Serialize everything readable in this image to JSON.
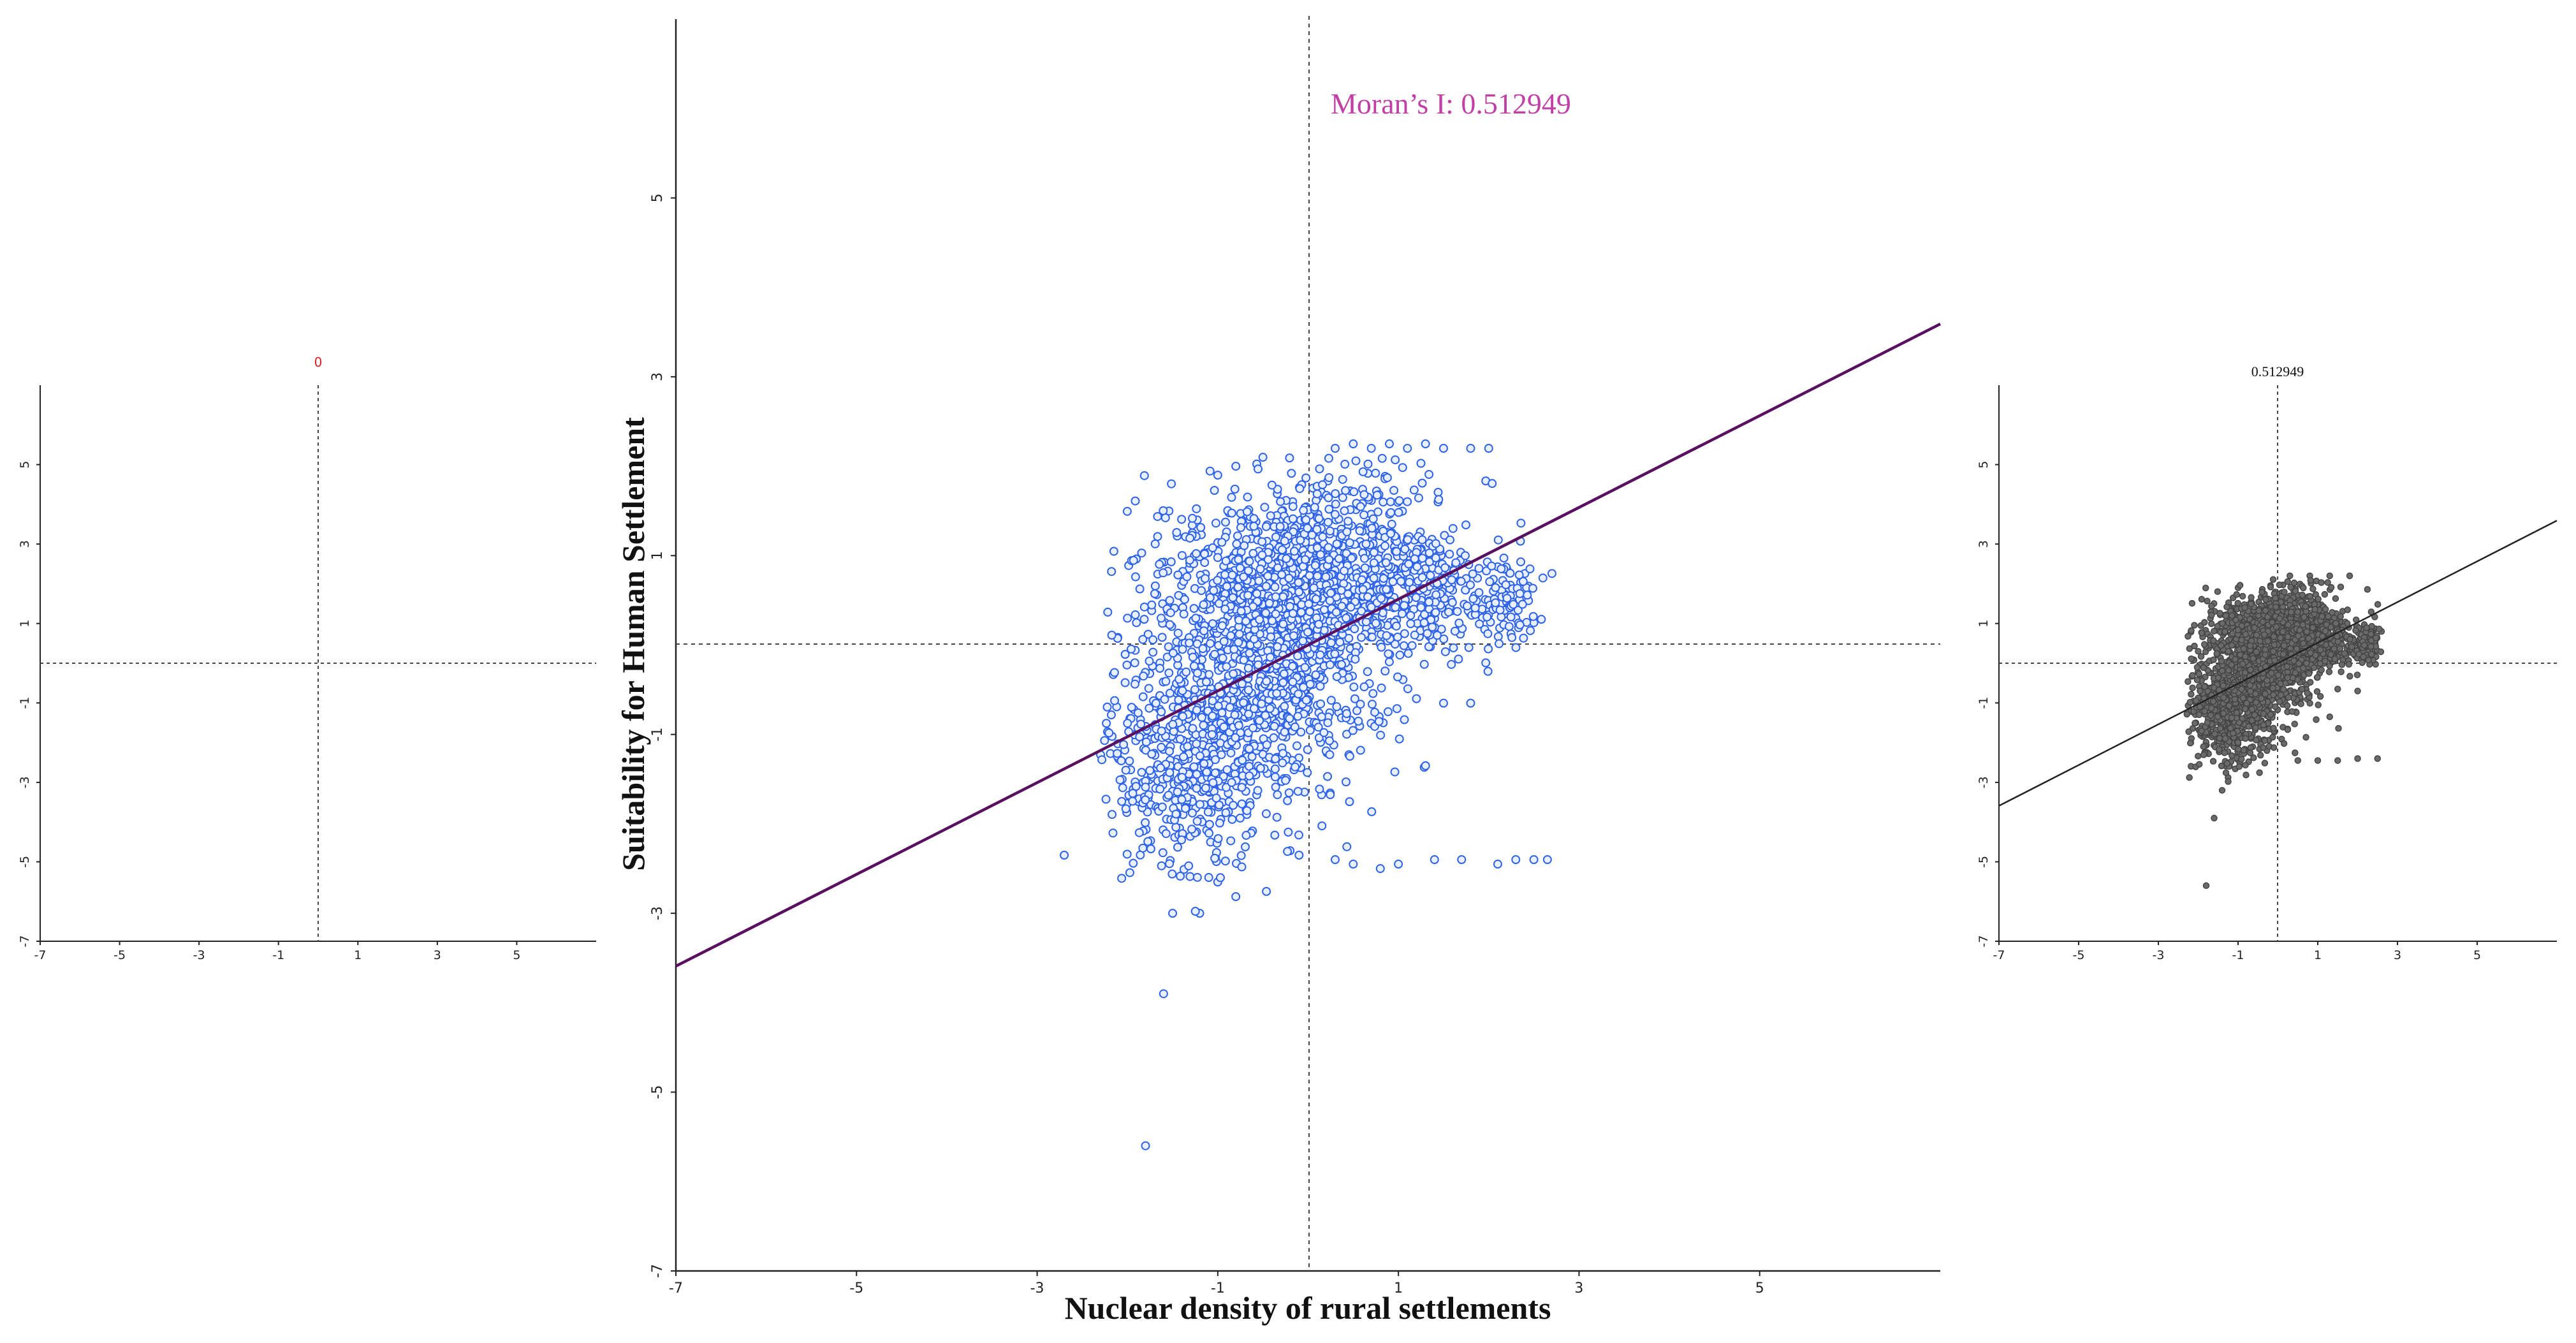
{
  "colors": {
    "points_main": "#2e62e8",
    "points_main_fill": "#e8f0ff",
    "points_right": "#555555",
    "fit_main": "#5a1060",
    "fit_right": "#222222",
    "moran_main": "#c040a8",
    "moran_left": "#e02020"
  },
  "chart_data": [
    {
      "type": "scatter",
      "title": "0",
      "xlabel": "",
      "ylabel": "",
      "xlim": [
        -7,
        7
      ],
      "ylim": [
        -7,
        7
      ],
      "x_ticks": [
        "-7",
        "-5",
        "-3",
        "-1",
        "1",
        "3",
        "5"
      ],
      "y_ticks": [
        "-7",
        "-5",
        "-3",
        "-1",
        "1",
        "3",
        "5"
      ],
      "slope": 0,
      "points": []
    },
    {
      "type": "scatter",
      "title": "Moran’s  I: 0.512949",
      "xlabel": "Nuclear density of rural settlements",
      "ylabel": "Suitability for Human Settlement",
      "xlim": [
        -7,
        7
      ],
      "ylim": [
        -7,
        7
      ],
      "x_ticks": [
        "-7",
        "-5",
        "-3",
        "-1",
        "1",
        "3",
        "5"
      ],
      "y_ticks": [
        "-7",
        "-5",
        "-3",
        "-1",
        "1",
        "3",
        "5"
      ],
      "slope": 0.512949,
      "points": [
        [
          -1.8,
          -5.6
        ],
        [
          -1.6,
          -3.9
        ],
        [
          -2.7,
          -2.35
        ],
        [
          -1.5,
          -3.0
        ],
        [
          -1.2,
          -3.0
        ],
        [
          -1.1,
          -2.6
        ],
        [
          -1.0,
          -2.65
        ],
        [
          -0.2,
          -2.3
        ],
        [
          -0.1,
          -2.35
        ],
        [
          0.3,
          -2.4
        ],
        [
          0.5,
          -2.45
        ],
        [
          0.8,
          -2.5
        ],
        [
          1.0,
          -2.45
        ],
        [
          1.4,
          -2.4
        ],
        [
          1.7,
          -2.4
        ],
        [
          2.1,
          -2.45
        ],
        [
          2.3,
          -2.4
        ],
        [
          2.5,
          -2.4
        ],
        [
          2.65,
          -2.4
        ],
        [
          0.3,
          2.2
        ],
        [
          0.5,
          2.25
        ],
        [
          0.7,
          2.2
        ],
        [
          0.9,
          2.25
        ],
        [
          1.1,
          2.2
        ],
        [
          1.3,
          2.25
        ],
        [
          1.5,
          2.2
        ],
        [
          1.8,
          2.2
        ],
        [
          2.0,
          2.2
        ],
        [
          2.7,
          0.8
        ],
        [
          2.6,
          0.75
        ],
        [
          2.4,
          0.8
        ],
        [
          2.2,
          0.85
        ],
        [
          2.5,
          0.25
        ],
        [
          2.3,
          0.3
        ],
        [
          1.2,
          -0.6
        ],
        [
          1.5,
          -0.65
        ],
        [
          1.8,
          -0.65
        ],
        [
          -2.0,
          0.3
        ],
        [
          -1.9,
          0.25
        ],
        [
          -1.0,
          1.9
        ],
        [
          -0.8,
          2.0
        ],
        [
          -0.5,
          2.1
        ]
      ]
    },
    {
      "type": "scatter",
      "title": "0.512949",
      "xlabel": "",
      "ylabel": "",
      "xlim": [
        -7,
        7
      ],
      "ylim": [
        -7,
        7
      ],
      "x_ticks": [
        "-7",
        "-5",
        "-3",
        "-1",
        "1",
        "3",
        "5"
      ],
      "y_ticks": [
        "-7",
        "-5",
        "-3",
        "-1",
        "1",
        "3",
        "5"
      ],
      "slope": 0.512949,
      "points": [
        [
          -1.8,
          -5.6
        ],
        [
          -1.6,
          -3.9
        ],
        [
          -1.2,
          -2.5
        ],
        [
          -1.4,
          -3.2
        ],
        [
          0.5,
          -2.45
        ],
        [
          1.0,
          -2.45
        ],
        [
          1.5,
          -2.45
        ],
        [
          2.0,
          -2.4
        ],
        [
          2.5,
          -2.4
        ],
        [
          0.3,
          2.2
        ],
        [
          0.8,
          2.2
        ],
        [
          1.3,
          2.2
        ],
        [
          1.8,
          2.2
        ],
        [
          2.6,
          0.8
        ],
        [
          2.4,
          0.25
        ],
        [
          -2.0,
          0.3
        ],
        [
          -1.9,
          -1.0
        ],
        [
          -1.0,
          1.9
        ],
        [
          1.5,
          -0.65
        ],
        [
          2.0,
          -0.7
        ]
      ]
    }
  ]
}
